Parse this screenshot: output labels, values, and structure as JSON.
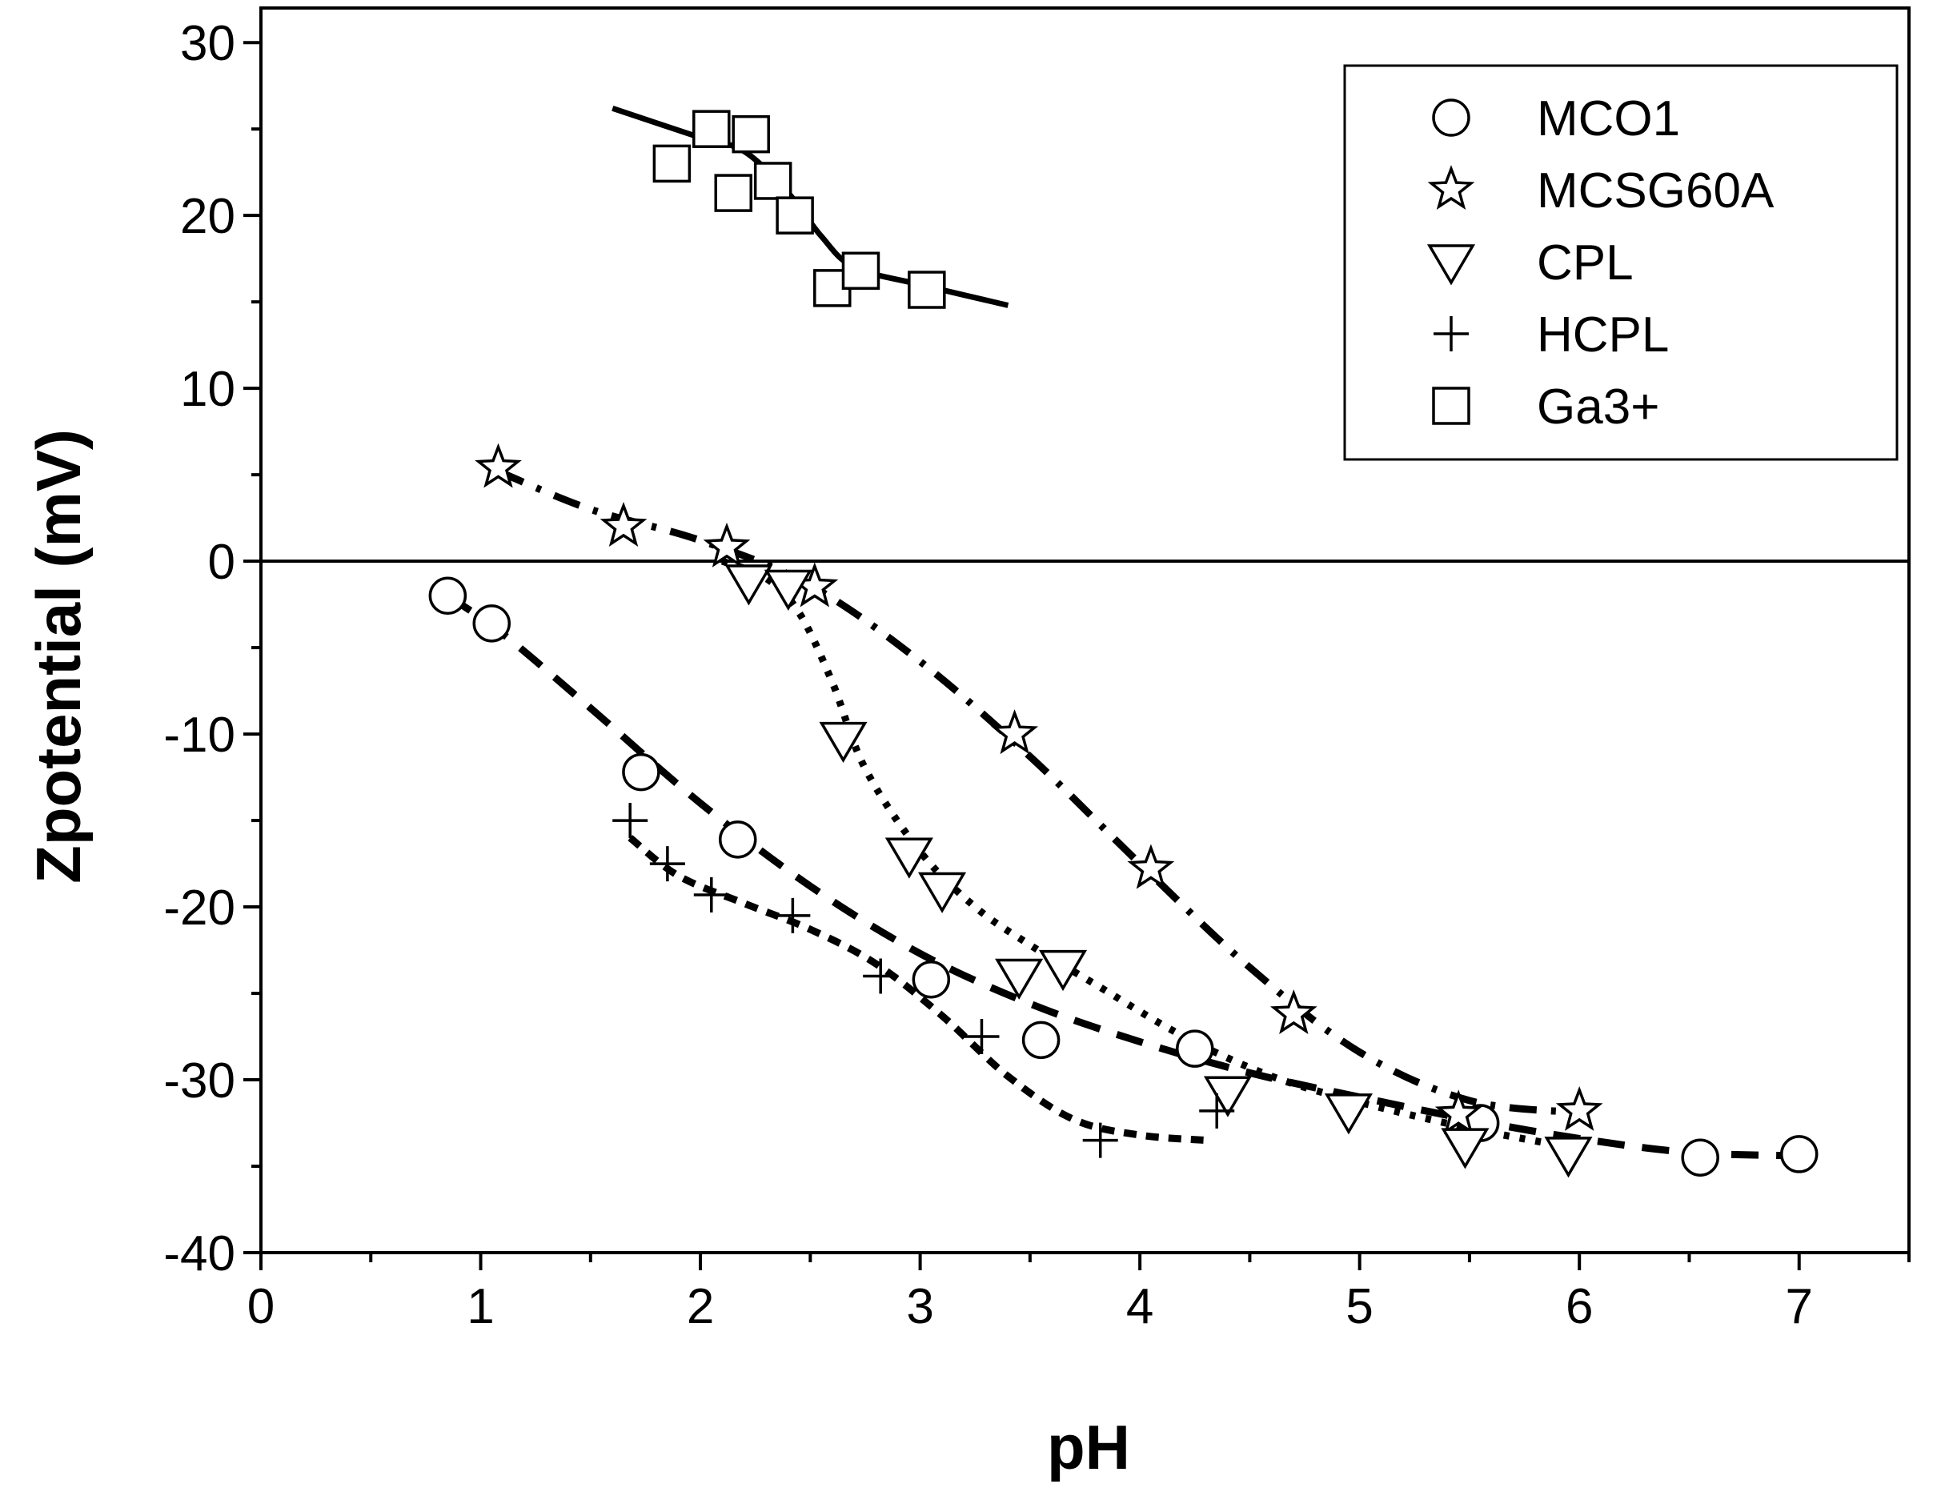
{
  "chart_data": {
    "type": "scatter",
    "title": "",
    "xlabel": "pH",
    "ylabel": "Zpotential (mV)",
    "xlim": [
      0,
      7.5
    ],
    "ylim": [
      -40,
      32
    ],
    "xticks": [
      0,
      1,
      2,
      3,
      4,
      5,
      6,
      7
    ],
    "xtick_labels": [
      "0",
      "1",
      "2",
      "3",
      "4",
      "5",
      "6",
      "7"
    ],
    "yticks": [
      -40,
      -30,
      -20,
      -10,
      0,
      10,
      20,
      30
    ],
    "ytick_labels": [
      "-40",
      "-30",
      "-20",
      "-10",
      "0",
      "10",
      "20",
      "30"
    ],
    "grid": false,
    "zero_line": true,
    "legend_position": "top-right",
    "series": [
      {
        "name": "MCO1",
        "marker": "circle",
        "x": [
          0.85,
          1.05,
          1.73,
          2.17,
          3.05,
          3.55,
          4.25,
          5.55,
          6.55,
          7.0
        ],
        "y": [
          -2.0,
          -3.6,
          -12.2,
          -16.1,
          -24.2,
          -27.7,
          -28.2,
          -32.5,
          -34.5,
          -34.3
        ],
        "fit_style": "dash",
        "fit_x": [
          0.85,
          1.1,
          1.5,
          2.0,
          2.5,
          3.0,
          3.5,
          4.0,
          4.5,
          5.0,
          5.5,
          6.0,
          6.5,
          7.0
        ],
        "fit_y": [
          -2.0,
          -4.2,
          -8.5,
          -14.0,
          -18.8,
          -22.7,
          -25.6,
          -27.8,
          -29.6,
          -31.0,
          -32.3,
          -33.4,
          -34.2,
          -34.4
        ]
      },
      {
        "name": "MCSG60A",
        "marker": "star",
        "x": [
          1.08,
          1.65,
          2.12,
          2.52,
          3.43,
          4.05,
          4.7,
          5.45,
          6.0
        ],
        "y": [
          5.4,
          2.0,
          0.8,
          -1.5,
          -10.0,
          -17.8,
          -26.2,
          -32.0,
          -31.8
        ],
        "fit_style": "dashdot",
        "fit_x": [
          1.08,
          1.5,
          2.0,
          2.5,
          3.0,
          3.5,
          4.0,
          4.5,
          5.0,
          5.5,
          6.0
        ],
        "fit_y": [
          5.2,
          3.0,
          1.2,
          -1.4,
          -5.8,
          -11.3,
          -17.5,
          -23.5,
          -28.4,
          -31.2,
          -31.9
        ]
      },
      {
        "name": "CPL",
        "marker": "triangle-down",
        "x": [
          2.22,
          2.4,
          2.65,
          2.95,
          3.1,
          3.45,
          3.65,
          4.4,
          4.95,
          5.48,
          5.95
        ],
        "y": [
          -1.2,
          -1.5,
          -10.3,
          -17.0,
          -19.0,
          -24.0,
          -23.5,
          -30.8,
          -31.8,
          -33.8,
          -34.3
        ],
        "fit_style": "dot",
        "fit_x": [
          2.1,
          2.3,
          2.45,
          2.6,
          2.75,
          3.0,
          3.25,
          3.5,
          3.8,
          4.2,
          4.6,
          5.0,
          5.5,
          6.0
        ],
        "fit_y": [
          0.0,
          -1.0,
          -3.0,
          -7.0,
          -12.0,
          -16.8,
          -20.0,
          -22.2,
          -24.5,
          -27.5,
          -29.8,
          -31.3,
          -32.8,
          -34.0
        ]
      },
      {
        "name": "HCPL",
        "marker": "plus",
        "x": [
          1.68,
          1.85,
          2.05,
          2.42,
          2.82,
          3.28,
          3.82,
          4.35
        ],
        "y": [
          -15.0,
          -17.5,
          -19.3,
          -20.5,
          -24.0,
          -27.5,
          -33.5,
          -31.8
        ],
        "fit_style": "shortdash",
        "fit_x": [
          1.68,
          1.9,
          2.2,
          2.5,
          2.8,
          3.1,
          3.4,
          3.7,
          4.0,
          4.3
        ],
        "fit_y": [
          -16.0,
          -18.2,
          -19.8,
          -21.3,
          -23.3,
          -26.3,
          -29.8,
          -32.3,
          -33.2,
          -33.5
        ]
      },
      {
        "name": "Ga3+",
        "marker": "square",
        "x": [
          1.87,
          2.05,
          2.15,
          2.23,
          2.33,
          2.43,
          2.6,
          2.73,
          3.03
        ],
        "y": [
          23.0,
          25.0,
          21.3,
          24.7,
          22.0,
          20.0,
          15.8,
          16.8,
          15.7
        ],
        "fit_style": "solid",
        "fit_x": [
          1.6,
          2.0,
          2.2,
          2.4,
          2.55,
          2.7,
          3.0,
          3.4
        ],
        "fit_y": [
          26.2,
          24.5,
          23.7,
          21.3,
          18.8,
          17.0,
          16.0,
          14.8
        ]
      }
    ]
  }
}
